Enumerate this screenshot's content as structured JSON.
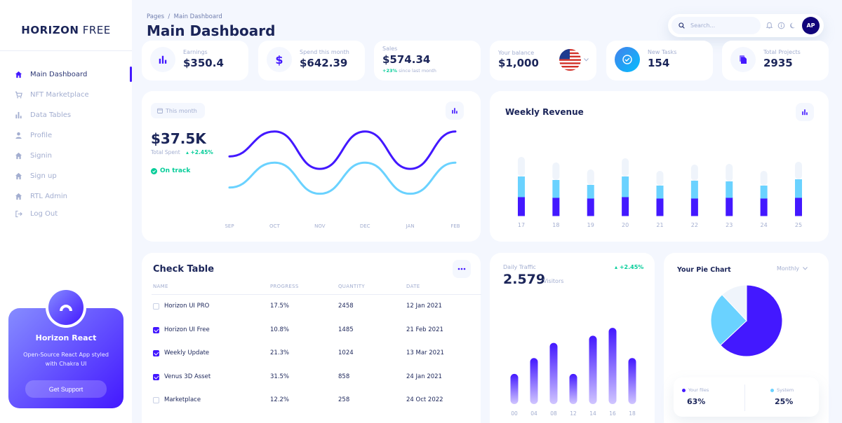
{
  "logo": {
    "bold": "HORIZON",
    "light": "FREE"
  },
  "sidebar": {
    "items": [
      {
        "label": "Main Dashboard",
        "icon": "home-icon",
        "active": true
      },
      {
        "label": "NFT Marketplace",
        "icon": "cart-icon"
      },
      {
        "label": "Data Tables",
        "icon": "bar-chart-icon"
      },
      {
        "label": "Profile",
        "icon": "person-icon"
      },
      {
        "label": "Signin",
        "icon": "home-icon"
      },
      {
        "label": "Sign up",
        "icon": "home-icon"
      },
      {
        "label": "RTL Admin",
        "icon": "home-icon"
      },
      {
        "label": "Log Out",
        "icon": "logout-icon"
      }
    ]
  },
  "promo": {
    "title": "Horizon React",
    "text": "Open-Source React App styled with Chakra UI",
    "button": "Get Support"
  },
  "header": {
    "breadcrumb": "Pages  /  Main Dashboard",
    "title": "Main Dashboard",
    "search_placeholder": "Search...",
    "avatar_initials": "AP"
  },
  "stats": {
    "earnings": {
      "label": "Earnings",
      "value": "$350.4"
    },
    "spend": {
      "label": "Spend this month",
      "value": "$642.39"
    },
    "sales": {
      "label": "Sales",
      "value": "$574.34",
      "change": "+23%",
      "change_text": "since last month"
    },
    "balance": {
      "label": "Your balance",
      "value": "$1,000"
    },
    "tasks": {
      "label": "New Tasks",
      "value": "154"
    },
    "projects": {
      "label": "Total Projects",
      "value": "2935"
    }
  },
  "spent_card": {
    "period": "This month",
    "amount": "$37.5K",
    "label": "Total Spent",
    "change": "+2.45%",
    "status": "On track",
    "chart_data": {
      "type": "line",
      "x": [
        "SEP",
        "OCT",
        "NOV",
        "DEC",
        "JAN",
        "FEB"
      ],
      "series": [
        {
          "values": [
            60,
            100,
            40,
            100,
            40,
            100
          ]
        },
        {
          "values": [
            10,
            50,
            0,
            50,
            0,
            50
          ]
        }
      ],
      "ylim": [
        -60,
        120
      ]
    }
  },
  "weekly_revenue": {
    "title": "Weekly Revenue",
    "chart_data": {
      "type": "bar",
      "stacked": true,
      "categories": [
        "17",
        "18",
        "19",
        "20",
        "21",
        "22",
        "23",
        "24",
        "25"
      ],
      "series": [
        {
          "values": [
            27,
            26,
            25,
            27,
            25,
            25,
            26,
            25,
            26
          ]
        },
        {
          "values": [
            29,
            25,
            19,
            29,
            18,
            25,
            23,
            18,
            26
          ]
        },
        {
          "values": [
            28,
            25,
            22,
            26,
            21,
            23,
            25,
            21,
            25
          ]
        }
      ],
      "ylim": [
        0,
        100
      ]
    }
  },
  "check_table": {
    "title": "Check Table",
    "columns": [
      "NAME",
      "PROGRESS",
      "QUANTITY",
      "DATE"
    ],
    "rows": [
      {
        "checked": false,
        "name": "Horizon UI PRO",
        "progress": "17.5%",
        "quantity": "2458",
        "date": "12 Jan 2021"
      },
      {
        "checked": true,
        "name": "Horizon UI Free",
        "progress": "10.8%",
        "quantity": "1485",
        "date": "21 Feb 2021"
      },
      {
        "checked": true,
        "name": "Weekly Update",
        "progress": "21.3%",
        "quantity": "1024",
        "date": "13 Mar 2021"
      },
      {
        "checked": true,
        "name": "Venus 3D Asset",
        "progress": "31.5%",
        "quantity": "858",
        "date": "24 Jan 2021"
      },
      {
        "checked": false,
        "name": "Marketplace",
        "progress": "12.2%",
        "quantity": "258",
        "date": "24 Oct 2022"
      }
    ]
  },
  "daily_traffic": {
    "label": "Daily Traffic",
    "value": "2.579",
    "unit": "Visitors",
    "change": "+2.45%",
    "chart_data": {
      "type": "bar",
      "categories": [
        "00",
        "04",
        "08",
        "12",
        "14",
        "16",
        "18"
      ],
      "values": [
        42,
        64,
        85,
        42,
        95,
        106,
        64
      ],
      "ylim": [
        0,
        110
      ]
    }
  },
  "pie": {
    "title": "Your Pie Chart",
    "period": "Monthly",
    "legend": [
      {
        "name": "Your files",
        "value": "63%",
        "color": "#4318ff"
      },
      {
        "name": "System",
        "value": "25%",
        "color": "#6ad2ff"
      }
    ],
    "chart_data": {
      "type": "pie",
      "slices": [
        {
          "label": "Your files",
          "value": 63,
          "color": "#4318ff"
        },
        {
          "label": "System",
          "value": 25,
          "color": "#6ad2ff"
        },
        {
          "label": "",
          "value": 12,
          "color": "#eff4fb"
        }
      ]
    }
  },
  "colors": {
    "brand": "#4318ff",
    "brand_light": "#868cff",
    "cyan": "#6ad2ff",
    "navy": "#1b2559",
    "muted": "#a3aed0",
    "green": "#05cd99"
  }
}
